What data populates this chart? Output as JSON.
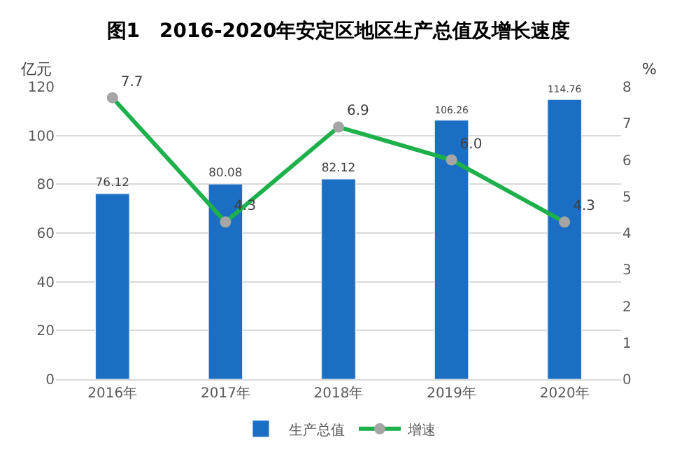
{
  "chart_data": {
    "type": "bar",
    "title": "图1　2016-2020年安定区地区生产总值及增长速度",
    "ylabel": "亿元",
    "y2label": "%",
    "categories": [
      "2016年",
      "2017年",
      "2018年",
      "2019年",
      "2020年"
    ],
    "series": [
      {
        "name": "生产总值",
        "color": "#1a6fc4",
        "values": [
          76.12,
          80.08,
          82.12,
          106.26,
          114.76
        ],
        "value_labels": [
          "76.12",
          "80.08",
          "82.12",
          "106.26",
          "114.76"
        ]
      },
      {
        "name": "增速",
        "type": "line",
        "axis": "y2",
        "color": "#1db04b",
        "colors": [
          "#a5a5a5",
          "#a5a5a5",
          "#a5a5a5",
          "#a5a5a5",
          "#a5a5a5"
        ],
        "values": [
          7.7,
          4.3,
          6.9,
          6.0,
          4.3
        ],
        "value_labels": [
          "7.7",
          "4.3",
          "6.9",
          "6.0",
          "4.3"
        ]
      }
    ],
    "ylim": [
      0,
      120
    ],
    "yticks": [
      0,
      20,
      40,
      60,
      80,
      100,
      120
    ],
    "y2lim": [
      0,
      8
    ],
    "y2ticks": [
      0,
      1,
      2,
      3,
      4,
      5,
      6,
      7,
      8
    ],
    "grid": "y",
    "legend": "bottom",
    "marker": "circle",
    "line_style": "solid"
  }
}
